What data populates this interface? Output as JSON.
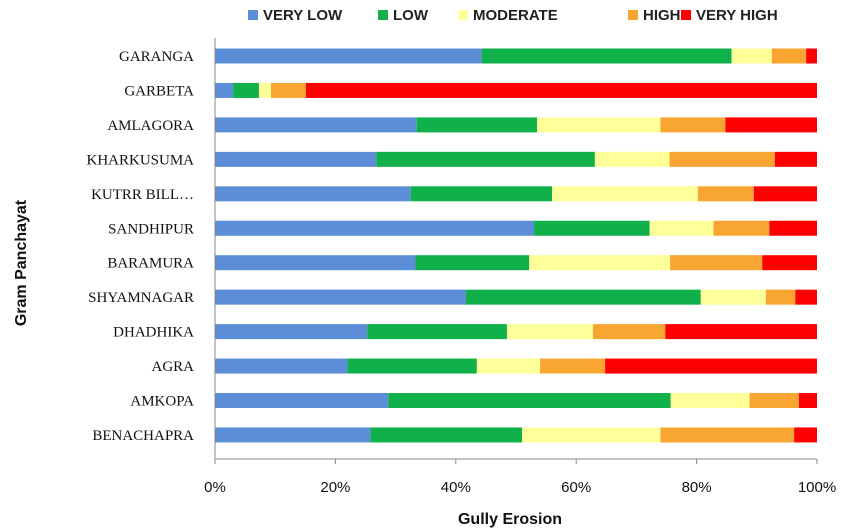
{
  "chart_data": {
    "type": "bar",
    "orientation": "horizontal",
    "stacked": "percent",
    "xlabel": "Gully Erosion",
    "ylabel": "Gram Panchayat",
    "xlim": [
      0,
      100
    ],
    "x_ticks": [
      "0%",
      "20%",
      "40%",
      "60%",
      "80%",
      "100%"
    ],
    "legend_position": "top",
    "grid": false,
    "categories": [
      "GARANGA",
      "GARBETA",
      "AMLAGORA",
      "KHARKUSUMA",
      "KUTRR BILL…",
      "SANDHIPUR",
      "BARAMURA",
      "SHYAMNAGAR",
      "DHADHIKA",
      "AGRA",
      "AMKOPA",
      "BENACHAPRA"
    ],
    "series": [
      {
        "name": "VERY LOW",
        "color": "#5b8ed6",
        "values": [
          44.3,
          3.0,
          33.5,
          26.8,
          32.5,
          53.0,
          33.3,
          41.7,
          25.3,
          22.0,
          28.8,
          25.8
        ]
      },
      {
        "name": "LOW",
        "color": "#10b14b",
        "values": [
          41.5,
          4.3,
          20.0,
          36.3,
          23.5,
          19.2,
          18.9,
          39.0,
          23.2,
          21.5,
          46.9,
          25.2
        ]
      },
      {
        "name": "MODERATE",
        "color": "#ffff99",
        "values": [
          6.7,
          2.0,
          20.5,
          12.4,
          24.2,
          10.6,
          23.4,
          10.8,
          14.3,
          10.5,
          13.1,
          23.0
        ]
      },
      {
        "name": "HIGH",
        "color": "#f9a531",
        "values": [
          5.7,
          5.8,
          10.8,
          17.5,
          9.3,
          9.3,
          15.3,
          4.9,
          12.0,
          10.8,
          8.2,
          22.2
        ]
      },
      {
        "name": "VERY HIGH",
        "color": "#ff0000",
        "values": [
          1.8,
          84.9,
          15.2,
          7.0,
          10.5,
          7.9,
          9.1,
          3.6,
          25.2,
          35.2,
          3.0,
          3.8
        ]
      }
    ]
  }
}
